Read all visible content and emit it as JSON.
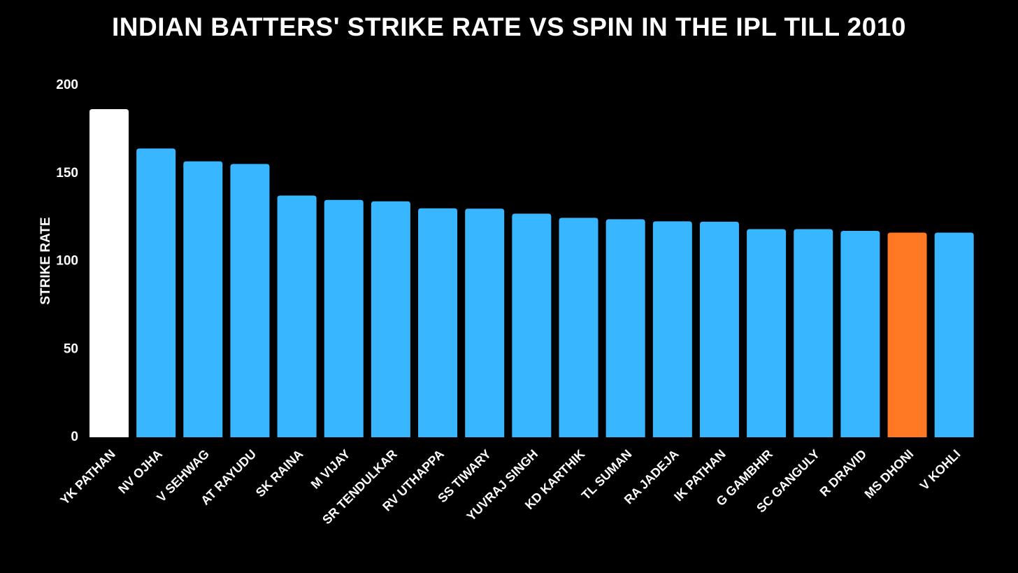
{
  "chart_data": {
    "type": "bar",
    "title": "INDIAN BATTERS' STRIKE RATE VS SPIN IN THE IPL TILL 2010",
    "xlabel": "",
    "ylabel": "STRIKE RATE",
    "ylim": [
      0,
      200
    ],
    "yticks": [
      0,
      50,
      100,
      150,
      200
    ],
    "grid": false,
    "categories": [
      "YK PATHAN",
      "NV OJHA",
      "V SEHWAG",
      "AT RAYUDU",
      "SK RAINA",
      "M VIJAY",
      "SR TENDULKAR",
      "RV UTHAPPA",
      "SS TIWARY",
      "YUVRAJ SINGH",
      "KD KARTHIK",
      "TL SUMAN",
      "RA JADEJA",
      "IK PATHAN",
      "G GAMBHIR",
      "SC GANGULY",
      "R DRAVID",
      "MS DHONI",
      "V KOHLI"
    ],
    "values": [
      186.5,
      164.1,
      156.8,
      155.3,
      137.4,
      134.9,
      134.1,
      130.1,
      129.9,
      127.1,
      124.7,
      123.9,
      122.7,
      122.5,
      118.3,
      118.3,
      117.3,
      116.3,
      116.3
    ],
    "colors": [
      "#ffffff",
      "#38b6ff",
      "#38b6ff",
      "#38b6ff",
      "#38b6ff",
      "#38b6ff",
      "#38b6ff",
      "#38b6ff",
      "#38b6ff",
      "#38b6ff",
      "#38b6ff",
      "#38b6ff",
      "#38b6ff",
      "#38b6ff",
      "#38b6ff",
      "#38b6ff",
      "#38b6ff",
      "#ff7722",
      "#38b6ff"
    ]
  },
  "theme": {
    "background": "#000000",
    "text": "#ffffff",
    "bar_default": "#38b6ff",
    "bar_highlight_top": "#ffffff",
    "bar_highlight": "#ff7722"
  }
}
